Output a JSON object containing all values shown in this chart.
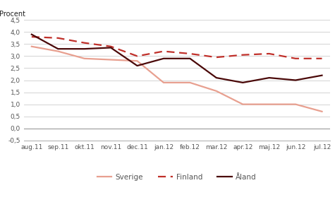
{
  "x_labels": [
    "aug.11",
    "sep.11",
    "okt.11",
    "nov.11",
    "dec.11",
    "jan.12",
    "feb.12",
    "mar.12",
    "apr.12",
    "maj.12",
    "jun.12",
    "jul.12"
  ],
  "sverige": [
    3.4,
    3.2,
    2.9,
    2.85,
    2.8,
    1.9,
    1.9,
    1.55,
    1.0,
    1.0,
    1.0,
    0.7
  ],
  "finland": [
    3.8,
    3.75,
    3.55,
    3.4,
    3.0,
    3.2,
    3.1,
    2.95,
    3.05,
    3.1,
    2.9,
    2.9
  ],
  "aland": [
    3.9,
    3.3,
    3.3,
    3.35,
    2.6,
    2.9,
    2.9,
    2.1,
    1.9,
    2.1,
    2.0,
    2.2
  ],
  "sverige_color": "#e8a090",
  "finland_color": "#c0302a",
  "aland_color": "#4a0808",
  "ylabel": "Procent",
  "ylim": [
    -0.5,
    4.5
  ],
  "yticks": [
    -0.5,
    0.0,
    0.5,
    1.0,
    1.5,
    2.0,
    2.5,
    3.0,
    3.5,
    4.0,
    4.5
  ],
  "legend_sverige": "Sverige",
  "legend_finland": "Finland",
  "legend_aland": "Åland",
  "bg_color": "#ffffff",
  "grid_color": "#cccccc",
  "tick_color": "#555555"
}
